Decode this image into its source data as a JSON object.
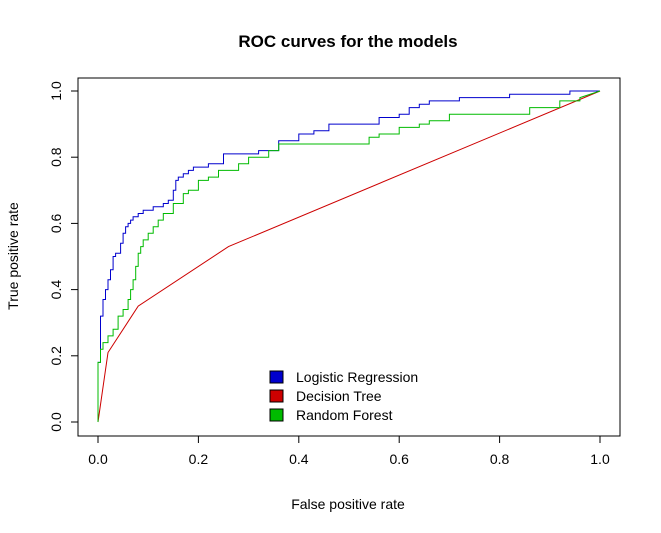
{
  "chart_data": {
    "type": "line",
    "title": "ROC curves for the models",
    "xlabel": "False positive rate",
    "ylabel": "True positive rate",
    "xlim": [
      0,
      1
    ],
    "ylim": [
      0,
      1
    ],
    "xticks": [
      "0.0",
      "0.2",
      "0.4",
      "0.6",
      "0.8",
      "1.0"
    ],
    "yticks": [
      "0.0",
      "0.2",
      "0.4",
      "0.6",
      "0.8",
      "1.0"
    ],
    "grid": false,
    "legend_position": "bottom-center",
    "series": [
      {
        "name": "Logistic Regression",
        "color": "#0000CD",
        "x": [
          0.0,
          0.0,
          0.005,
          0.005,
          0.01,
          0.01,
          0.015,
          0.015,
          0.02,
          0.02,
          0.025,
          0.025,
          0.03,
          0.03,
          0.035,
          0.035,
          0.045,
          0.045,
          0.05,
          0.05,
          0.055,
          0.055,
          0.06,
          0.06,
          0.065,
          0.065,
          0.07,
          0.07,
          0.08,
          0.08,
          0.09,
          0.09,
          0.1,
          0.1,
          0.11,
          0.11,
          0.13,
          0.13,
          0.14,
          0.14,
          0.15,
          0.15,
          0.155,
          0.155,
          0.16,
          0.16,
          0.17,
          0.17,
          0.18,
          0.18,
          0.19,
          0.19,
          0.2,
          0.2,
          0.22,
          0.22,
          0.25,
          0.25,
          0.28,
          0.28,
          0.32,
          0.32,
          0.36,
          0.36,
          0.4,
          0.4,
          0.43,
          0.43,
          0.46,
          0.46,
          0.5,
          0.5,
          0.56,
          0.56,
          0.6,
          0.6,
          0.62,
          0.62,
          0.64,
          0.64,
          0.66,
          0.66,
          0.68,
          0.68,
          0.72,
          0.72,
          0.74,
          0.74,
          0.82,
          0.82,
          0.88,
          0.88,
          0.94,
          0.94,
          1.0
        ],
        "y": [
          0.0,
          0.18,
          0.18,
          0.32,
          0.32,
          0.37,
          0.37,
          0.4,
          0.4,
          0.43,
          0.43,
          0.46,
          0.46,
          0.5,
          0.5,
          0.51,
          0.51,
          0.54,
          0.54,
          0.57,
          0.57,
          0.59,
          0.59,
          0.6,
          0.6,
          0.61,
          0.61,
          0.62,
          0.62,
          0.63,
          0.63,
          0.64,
          0.64,
          0.64,
          0.64,
          0.65,
          0.65,
          0.66,
          0.66,
          0.67,
          0.67,
          0.7,
          0.7,
          0.73,
          0.73,
          0.74,
          0.74,
          0.75,
          0.75,
          0.76,
          0.76,
          0.77,
          0.77,
          0.77,
          0.77,
          0.78,
          0.78,
          0.81,
          0.81,
          0.81,
          0.81,
          0.82,
          0.82,
          0.85,
          0.85,
          0.87,
          0.87,
          0.88,
          0.88,
          0.9,
          0.9,
          0.9,
          0.9,
          0.92,
          0.92,
          0.93,
          0.93,
          0.95,
          0.95,
          0.96,
          0.96,
          0.97,
          0.97,
          0.97,
          0.97,
          0.98,
          0.98,
          0.98,
          0.98,
          0.99,
          0.99,
          0.99,
          0.99,
          1.0,
          1.0
        ]
      },
      {
        "name": "Decision Tree",
        "color": "#CD0000",
        "x": [
          0.0,
          0.02,
          0.08,
          0.26,
          1.0
        ],
        "y": [
          0.0,
          0.21,
          0.35,
          0.53,
          1.0
        ]
      },
      {
        "name": "Random Forest",
        "color": "#00BB00",
        "x": [
          0.0,
          0.0,
          0.005,
          0.005,
          0.01,
          0.01,
          0.02,
          0.02,
          0.03,
          0.03,
          0.04,
          0.04,
          0.05,
          0.05,
          0.06,
          0.06,
          0.065,
          0.065,
          0.07,
          0.07,
          0.075,
          0.075,
          0.08,
          0.08,
          0.085,
          0.085,
          0.09,
          0.09,
          0.1,
          0.1,
          0.11,
          0.11,
          0.12,
          0.12,
          0.13,
          0.13,
          0.15,
          0.15,
          0.17,
          0.17,
          0.18,
          0.18,
          0.2,
          0.2,
          0.22,
          0.22,
          0.24,
          0.24,
          0.28,
          0.28,
          0.3,
          0.3,
          0.34,
          0.34,
          0.36,
          0.36,
          0.38,
          0.38,
          0.42,
          0.42,
          0.54,
          0.54,
          0.56,
          0.56,
          0.6,
          0.6,
          0.64,
          0.64,
          0.66,
          0.66,
          0.7,
          0.7,
          0.86,
          0.86,
          0.92,
          0.92,
          0.96,
          0.96,
          1.0
        ],
        "y": [
          0.0,
          0.18,
          0.18,
          0.22,
          0.22,
          0.24,
          0.24,
          0.26,
          0.26,
          0.28,
          0.28,
          0.32,
          0.32,
          0.34,
          0.34,
          0.37,
          0.37,
          0.4,
          0.4,
          0.43,
          0.43,
          0.47,
          0.47,
          0.51,
          0.51,
          0.53,
          0.53,
          0.55,
          0.55,
          0.57,
          0.57,
          0.59,
          0.59,
          0.61,
          0.61,
          0.63,
          0.63,
          0.66,
          0.66,
          0.69,
          0.69,
          0.7,
          0.7,
          0.73,
          0.73,
          0.74,
          0.74,
          0.76,
          0.76,
          0.78,
          0.78,
          0.8,
          0.8,
          0.82,
          0.82,
          0.84,
          0.84,
          0.84,
          0.84,
          0.84,
          0.84,
          0.86,
          0.86,
          0.87,
          0.87,
          0.89,
          0.89,
          0.9,
          0.9,
          0.91,
          0.91,
          0.93,
          0.93,
          0.95,
          0.95,
          0.97,
          0.97,
          0.98,
          1.0
        ]
      }
    ]
  }
}
